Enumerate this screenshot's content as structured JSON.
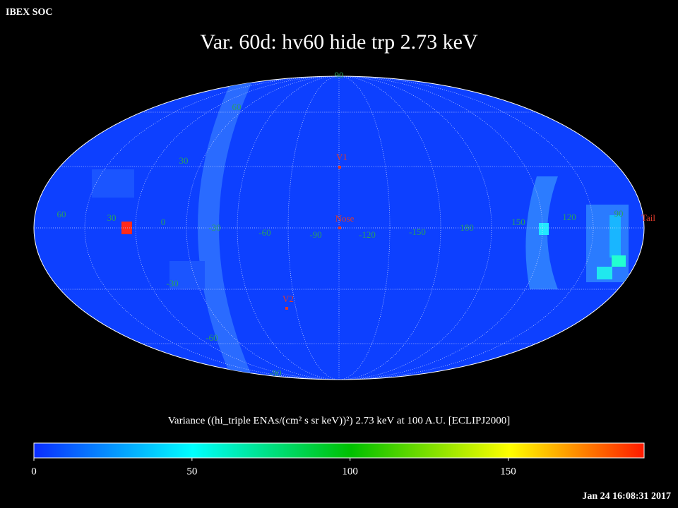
{
  "header": {
    "source": "IBEX SOC",
    "title": "Var. 60d: hv60 hide trp 2.73 keV",
    "timestamp": "Jan 24 16:08:31 2017"
  },
  "map": {
    "grid_labels": [
      "90",
      "60",
      "30",
      "60",
      "30",
      "0",
      "-30",
      "-60",
      "-90",
      "-120",
      "-150",
      "180",
      "150",
      "120",
      "90",
      "-30",
      "-60",
      "-90"
    ],
    "markers": [
      "V1",
      "Nose",
      "V2",
      "Tail"
    ]
  },
  "colorbar": {
    "label": "Variance ((hi_triple ENAs/(cm² s sr keV))²) 2.73 keV at 100 A.U. [ECLIPJ2000]",
    "range": [
      0,
      193
    ],
    "ticks": [
      0,
      50,
      100,
      150
    ]
  }
}
